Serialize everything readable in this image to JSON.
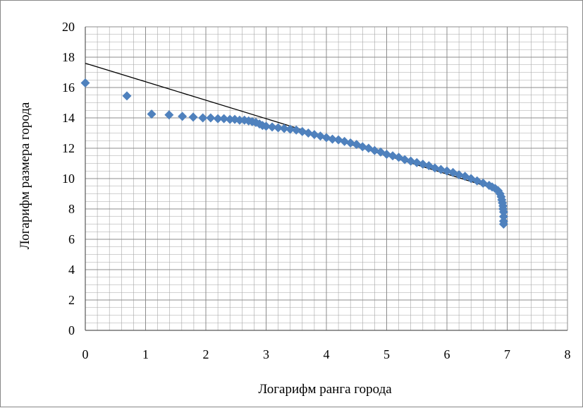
{
  "chart_data": {
    "type": "scatter",
    "xlabel": "Логарифм ранга города",
    "ylabel": "Логарифм размера города",
    "xlim": [
      0,
      8
    ],
    "ylim": [
      0,
      20
    ],
    "x_ticks": [
      "0",
      "1",
      "2",
      "3",
      "4",
      "5",
      "6",
      "7",
      "8"
    ],
    "y_ticks": [
      "0",
      "2",
      "4",
      "6",
      "8",
      "10",
      "12",
      "14",
      "16",
      "18",
      "20"
    ],
    "grid": {
      "major": true,
      "minor": true
    },
    "legend": "none",
    "colors": {
      "marker": "#4f81bd",
      "trendline": "#000000",
      "grid": "#a6a6a6",
      "axis": "#595959"
    },
    "series": [
      {
        "marker": "diamond",
        "points": [
          [
            0.0,
            16.3
          ],
          [
            0.69,
            15.45
          ],
          [
            1.1,
            14.25
          ],
          [
            1.39,
            14.2
          ],
          [
            1.61,
            14.1
          ],
          [
            1.79,
            14.05
          ],
          [
            1.95,
            14.0
          ],
          [
            2.08,
            14.0
          ],
          [
            2.2,
            13.95
          ],
          [
            2.3,
            13.95
          ],
          [
            2.4,
            13.9
          ],
          [
            2.48,
            13.9
          ],
          [
            2.56,
            13.85
          ],
          [
            2.64,
            13.85
          ],
          [
            2.71,
            13.8
          ],
          [
            2.77,
            13.75
          ],
          [
            2.83,
            13.7
          ],
          [
            2.89,
            13.6
          ],
          [
            2.94,
            13.5
          ],
          [
            3.0,
            13.45
          ],
          [
            3.1,
            13.4
          ],
          [
            3.2,
            13.35
          ],
          [
            3.3,
            13.3
          ],
          [
            3.4,
            13.25
          ],
          [
            3.5,
            13.2
          ],
          [
            3.6,
            13.1
          ],
          [
            3.7,
            13.0
          ],
          [
            3.8,
            12.9
          ],
          [
            3.9,
            12.8
          ],
          [
            4.0,
            12.7
          ],
          [
            4.1,
            12.6
          ],
          [
            4.2,
            12.55
          ],
          [
            4.3,
            12.45
          ],
          [
            4.4,
            12.35
          ],
          [
            4.5,
            12.25
          ],
          [
            4.6,
            12.1
          ],
          [
            4.7,
            12.0
          ],
          [
            4.8,
            11.85
          ],
          [
            4.9,
            11.75
          ],
          [
            5.0,
            11.6
          ],
          [
            5.1,
            11.5
          ],
          [
            5.2,
            11.4
          ],
          [
            5.3,
            11.25
          ],
          [
            5.4,
            11.15
          ],
          [
            5.5,
            11.05
          ],
          [
            5.6,
            10.95
          ],
          [
            5.7,
            10.85
          ],
          [
            5.8,
            10.7
          ],
          [
            5.9,
            10.6
          ],
          [
            6.0,
            10.5
          ],
          [
            6.1,
            10.4
          ],
          [
            6.2,
            10.25
          ],
          [
            6.3,
            10.15
          ],
          [
            6.4,
            10.0
          ],
          [
            6.5,
            9.85
          ],
          [
            6.6,
            9.7
          ],
          [
            6.7,
            9.55
          ],
          [
            6.75,
            9.45
          ],
          [
            6.8,
            9.35
          ],
          [
            6.85,
            9.2
          ],
          [
            6.88,
            9.0
          ],
          [
            6.9,
            8.8
          ],
          [
            6.91,
            8.6
          ],
          [
            6.92,
            8.4
          ],
          [
            6.93,
            8.2
          ],
          [
            6.93,
            8.0
          ],
          [
            6.94,
            7.8
          ],
          [
            6.94,
            7.5
          ],
          [
            6.94,
            7.2
          ],
          [
            6.94,
            7.0
          ]
        ]
      }
    ],
    "trendline": {
      "type": "linear",
      "x": [
        0,
        6.9
      ],
      "y": [
        17.6,
        9.2
      ]
    }
  }
}
